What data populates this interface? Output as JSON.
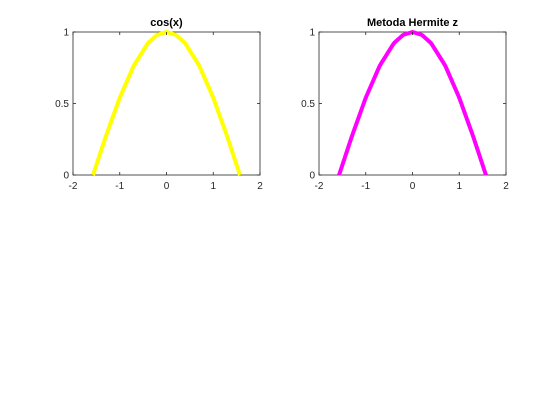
{
  "chart_data": [
    {
      "type": "line",
      "title": "cos(x)",
      "xlabel": "",
      "ylabel": "",
      "xlim": [
        -2,
        2
      ],
      "ylim": [
        0,
        1
      ],
      "xticks": [
        -2,
        -1,
        0,
        1,
        2
      ],
      "xtick_labels": [
        "-2",
        "-1",
        "0",
        "1",
        "2"
      ],
      "yticks": [
        0,
        0.5,
        1
      ],
      "ytick_labels": [
        "0",
        "0.5",
        "1"
      ],
      "grid": false,
      "series": [
        {
          "color": "#ffff00",
          "x": [
            -1.5708,
            -1.3,
            -1.0,
            -0.7,
            -0.4,
            -0.2,
            0,
            0.2,
            0.4,
            0.7,
            1.0,
            1.3,
            1.5708
          ],
          "y": [
            0,
            0.2675,
            0.5403,
            0.7648,
            0.9211,
            0.9801,
            1,
            0.9801,
            0.9211,
            0.7648,
            0.5403,
            0.2675,
            0
          ]
        }
      ]
    },
    {
      "type": "line",
      "title": "Metoda Hermite z",
      "xlabel": "",
      "ylabel": "",
      "xlim": [
        -2,
        2
      ],
      "ylim": [
        0,
        1
      ],
      "xticks": [
        -2,
        -1,
        0,
        1,
        2
      ],
      "xtick_labels": [
        "-2",
        "-1",
        "0",
        "1",
        "2"
      ],
      "yticks": [
        0,
        0.5,
        1
      ],
      "ytick_labels": [
        "0",
        "0.5",
        "1"
      ],
      "grid": false,
      "series": [
        {
          "color": "#ff00ff",
          "x": [
            -1.5708,
            -1.3,
            -1.0,
            -0.7,
            -0.4,
            -0.2,
            0,
            0.2,
            0.4,
            0.7,
            1.0,
            1.3,
            1.5708
          ],
          "y": [
            0,
            0.2675,
            0.5403,
            0.7648,
            0.9211,
            0.9801,
            1,
            0.9801,
            0.9211,
            0.7648,
            0.5403,
            0.2675,
            0
          ]
        }
      ]
    }
  ]
}
